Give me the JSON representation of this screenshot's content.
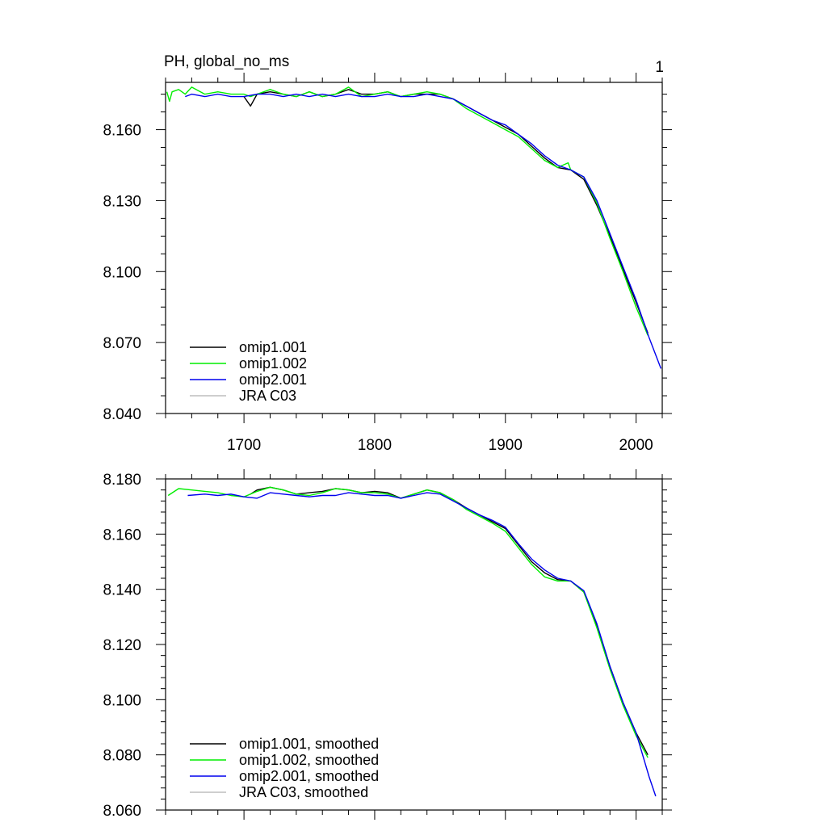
{
  "chart_data": [
    {
      "type": "line",
      "title": "PH, global_no_ms",
      "panel_label": "1",
      "xlim": [
        1640,
        2020
      ],
      "ylim": [
        8.04,
        8.18
      ],
      "x_ticks": [
        1700,
        1800,
        1900,
        2000
      ],
      "x_tick_labels": [
        "1700",
        "1800",
        "1900",
        "2000"
      ],
      "y_ticks": [
        8.04,
        8.07,
        8.1,
        8.13,
        8.16
      ],
      "y_tick_labels": [
        "8.040",
        "8.070",
        "8.100",
        "8.130",
        "8.160"
      ],
      "legend_position": "bottom-left",
      "series": [
        {
          "name": "omip1.001",
          "color": "#000000",
          "x": [
            1700,
            1705,
            1710,
            1720,
            1730,
            1740,
            1750,
            1760,
            1770,
            1780,
            1790,
            1800,
            1810,
            1820,
            1830,
            1840,
            1850,
            1860,
            1870,
            1880,
            1890,
            1900,
            1910,
            1920,
            1930,
            1940,
            1950,
            1960,
            1970,
            1980,
            1990,
            2000,
            2009
          ],
          "y": [
            8.174,
            8.17,
            8.175,
            8.176,
            8.175,
            8.174,
            8.176,
            8.174,
            8.175,
            8.177,
            8.175,
            8.175,
            8.176,
            8.174,
            8.175,
            8.175,
            8.175,
            8.173,
            8.17,
            8.167,
            8.164,
            8.161,
            8.158,
            8.153,
            8.148,
            8.144,
            8.143,
            8.139,
            8.128,
            8.115,
            8.101,
            8.087,
            8.074
          ]
        },
        {
          "name": "omip1.002",
          "color": "#00ee00",
          "x": [
            1641,
            1643,
            1645,
            1650,
            1655,
            1660,
            1670,
            1680,
            1690,
            1700,
            1705,
            1710,
            1720,
            1730,
            1740,
            1750,
            1760,
            1770,
            1780,
            1790,
            1800,
            1810,
            1820,
            1830,
            1840,
            1850,
            1860,
            1870,
            1880,
            1890,
            1900,
            1910,
            1920,
            1930,
            1940,
            1948,
            1950,
            1960,
            1970,
            1980,
            1990,
            2000,
            2009
          ],
          "y": [
            8.176,
            8.172,
            8.176,
            8.177,
            8.175,
            8.178,
            8.175,
            8.176,
            8.175,
            8.175,
            8.174,
            8.175,
            8.177,
            8.175,
            8.174,
            8.176,
            8.174,
            8.175,
            8.178,
            8.174,
            8.175,
            8.176,
            8.174,
            8.175,
            8.176,
            8.175,
            8.173,
            8.169,
            8.166,
            8.163,
            8.16,
            8.157,
            8.152,
            8.147,
            8.144,
            8.146,
            8.143,
            8.14,
            8.129,
            8.114,
            8.1,
            8.085,
            8.073
          ]
        },
        {
          "name": "omip2.001",
          "color": "#0000ee",
          "x": [
            1655,
            1660,
            1670,
            1680,
            1690,
            1700,
            1710,
            1720,
            1730,
            1740,
            1750,
            1760,
            1770,
            1780,
            1790,
            1800,
            1810,
            1820,
            1830,
            1840,
            1850,
            1860,
            1870,
            1880,
            1890,
            1900,
            1910,
            1920,
            1930,
            1940,
            1950,
            1960,
            1970,
            1980,
            1990,
            2000,
            2010,
            2019
          ],
          "y": [
            8.174,
            8.175,
            8.174,
            8.175,
            8.174,
            8.174,
            8.175,
            8.175,
            8.174,
            8.175,
            8.174,
            8.175,
            8.174,
            8.175,
            8.174,
            8.174,
            8.175,
            8.174,
            8.174,
            8.175,
            8.174,
            8.173,
            8.17,
            8.167,
            8.164,
            8.162,
            8.158,
            8.154,
            8.149,
            8.145,
            8.143,
            8.14,
            8.13,
            8.116,
            8.102,
            8.088,
            8.072,
            8.059
          ]
        },
        {
          "name": "JRA C03",
          "color": "#bdbdbd",
          "x": [],
          "y": []
        }
      ]
    },
    {
      "type": "line",
      "xlim": [
        1640,
        2020
      ],
      "ylim": [
        8.06,
        8.18
      ],
      "x_ticks": [
        1700,
        1800,
        1900,
        2000
      ],
      "y_ticks": [
        8.06,
        8.08,
        8.1,
        8.12,
        8.14,
        8.16,
        8.18
      ],
      "y_tick_labels": [
        "8.060",
        "8.080",
        "8.100",
        "8.120",
        "8.140",
        "8.160",
        "8.180"
      ],
      "legend_position": "bottom-left",
      "series": [
        {
          "name": "omip1.001, smoothed",
          "color": "#000000",
          "x": [
            1705,
            1710,
            1720,
            1730,
            1740,
            1750,
            1760,
            1770,
            1780,
            1790,
            1800,
            1810,
            1820,
            1830,
            1840,
            1850,
            1860,
            1870,
            1880,
            1890,
            1900,
            1910,
            1920,
            1930,
            1940,
            1950,
            1960,
            1970,
            1980,
            1990,
            2000,
            2009
          ],
          "y": [
            8.1745,
            8.176,
            8.177,
            8.176,
            8.1745,
            8.175,
            8.1755,
            8.1765,
            8.176,
            8.175,
            8.1755,
            8.175,
            8.173,
            8.1745,
            8.176,
            8.175,
            8.1725,
            8.1695,
            8.167,
            8.1645,
            8.162,
            8.156,
            8.15,
            8.146,
            8.1435,
            8.143,
            8.139,
            8.127,
            8.112,
            8.099,
            8.088,
            8.08
          ]
        },
        {
          "name": "omip1.002, smoothed",
          "color": "#00ee00",
          "x": [
            1642,
            1650,
            1660,
            1670,
            1680,
            1690,
            1700,
            1710,
            1720,
            1730,
            1740,
            1750,
            1760,
            1770,
            1780,
            1790,
            1800,
            1810,
            1820,
            1830,
            1840,
            1850,
            1860,
            1870,
            1880,
            1890,
            1900,
            1910,
            1920,
            1930,
            1940,
            1950,
            1960,
            1970,
            1980,
            1990,
            2000,
            2009
          ],
          "y": [
            8.174,
            8.1765,
            8.176,
            8.1755,
            8.175,
            8.174,
            8.1735,
            8.1755,
            8.177,
            8.176,
            8.1745,
            8.174,
            8.175,
            8.1765,
            8.176,
            8.175,
            8.175,
            8.1745,
            8.173,
            8.1745,
            8.176,
            8.175,
            8.1725,
            8.169,
            8.1665,
            8.164,
            8.161,
            8.155,
            8.149,
            8.1445,
            8.143,
            8.143,
            8.139,
            8.126,
            8.111,
            8.098,
            8.087,
            8.079
          ]
        },
        {
          "name": "omip2.001, smoothed",
          "color": "#0000ee",
          "x": [
            1657,
            1670,
            1680,
            1690,
            1700,
            1710,
            1720,
            1730,
            1740,
            1750,
            1760,
            1770,
            1780,
            1790,
            1800,
            1810,
            1820,
            1830,
            1840,
            1850,
            1860,
            1870,
            1880,
            1890,
            1900,
            1910,
            1920,
            1930,
            1940,
            1950,
            1960,
            1970,
            1980,
            1990,
            2000,
            2010,
            2015
          ],
          "y": [
            8.174,
            8.1745,
            8.174,
            8.1745,
            8.1735,
            8.173,
            8.175,
            8.1745,
            8.174,
            8.1735,
            8.174,
            8.174,
            8.175,
            8.1745,
            8.174,
            8.174,
            8.173,
            8.174,
            8.175,
            8.1745,
            8.172,
            8.1695,
            8.167,
            8.165,
            8.1625,
            8.1565,
            8.151,
            8.147,
            8.144,
            8.143,
            8.1395,
            8.1275,
            8.112,
            8.099,
            8.088,
            8.072,
            8.065
          ]
        },
        {
          "name": "JRA C03, smoothed",
          "color": "#bdbdbd",
          "x": [],
          "y": []
        }
      ]
    }
  ]
}
